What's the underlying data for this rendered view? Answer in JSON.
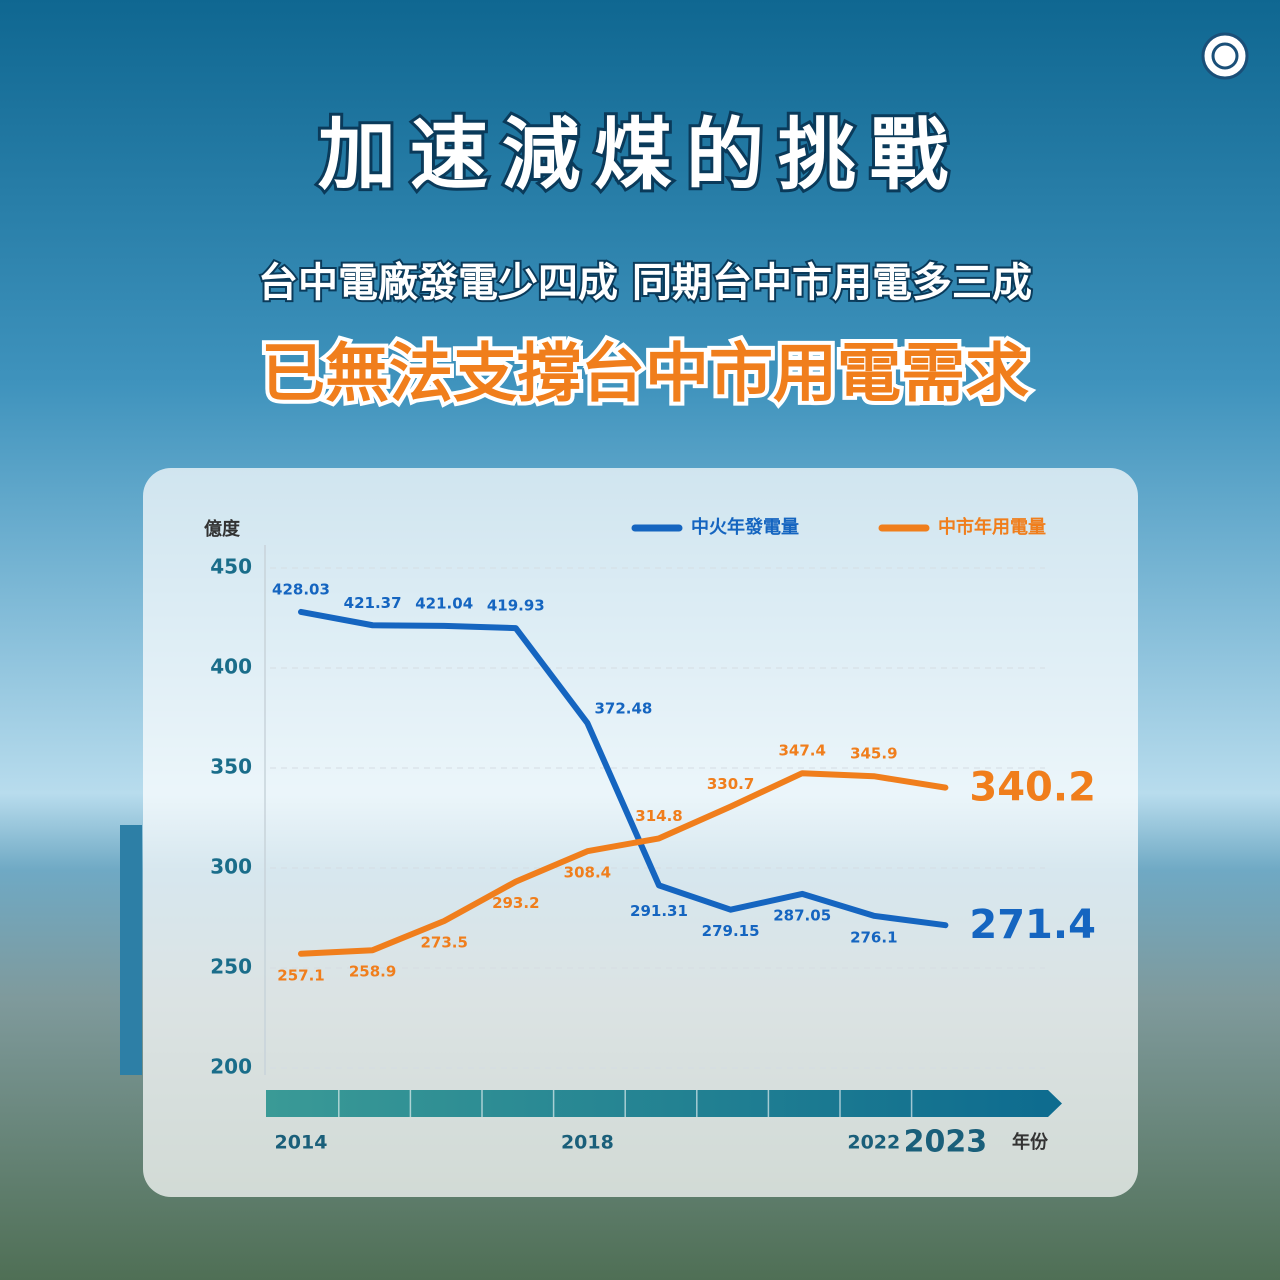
{
  "chart_data": {
    "type": "line",
    "title": "加速減煤的挑戰",
    "subtitle": "台中電廠發電少四成  同期台中市用電多三成",
    "headline": "已無法支撐台中市用電需求",
    "y_label": "億度",
    "x_label": "年份",
    "categories": [
      "2014",
      null,
      null,
      null,
      "2018",
      null,
      null,
      null,
      "2022",
      "2023"
    ],
    "series": [
      {
        "name": "中火年發電量",
        "color": "#1565c0",
        "values": [
          428.03,
          421.37,
          421.04,
          419.93,
          372.48,
          291.31,
          279.15,
          287.05,
          276.1,
          271.4
        ]
      },
      {
        "name": "中市年用電量",
        "color": "#f07e1c",
        "values": [
          257.1,
          258.9,
          273.5,
          293.2,
          308.4,
          314.8,
          330.7,
          347.4,
          345.9,
          340.2
        ]
      }
    ],
    "ylim": [
      200,
      450
    ],
    "yticks": [
      200,
      250,
      300,
      350,
      400,
      450
    ],
    "grid": true
  }
}
